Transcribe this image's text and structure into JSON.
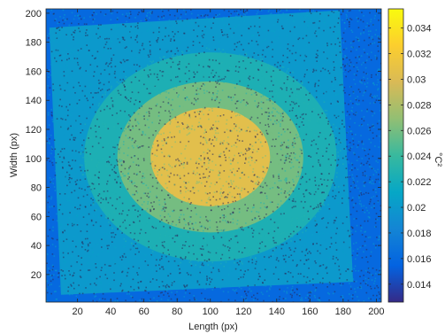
{
  "chart_data": {
    "type": "heatmap",
    "title": "",
    "xlabel": "Length (px)",
    "ylabel": "Width (px)",
    "colorbar_label": "°C²",
    "xlim": [
      1,
      203
    ],
    "ylim": [
      1,
      203
    ],
    "clim": [
      0.0126,
      0.0355
    ],
    "x_ticks": [
      20,
      40,
      60,
      80,
      100,
      120,
      140,
      160,
      180,
      200
    ],
    "y_ticks": [
      20,
      40,
      60,
      80,
      100,
      120,
      140,
      160,
      180,
      200
    ],
    "colorbar_ticks": [
      0.014,
      0.016,
      0.018,
      0.02,
      0.022,
      0.024,
      0.026,
      0.028,
      0.03,
      0.032,
      0.034
    ],
    "colorbar_tick_labels": [
      "0.014",
      "0.016",
      "0.018",
      "0.02",
      "0.022",
      "0.024",
      "0.026",
      "0.028",
      "0.03",
      "0.032",
      "0.034"
    ],
    "colormap": [
      "#352a87",
      "#0363e1",
      "#1485d4",
      "#06a7c6",
      "#38b99e",
      "#92bf73",
      "#d9ba56",
      "#fcce2e",
      "#f9fb0e"
    ],
    "background_level": 0.016,
    "plate": {
      "corners_data": [
        [
          10,
          6
        ],
        [
          186,
          15
        ],
        [
          178,
          202
        ],
        [
          3,
          190
        ]
      ],
      "level": 0.02
    },
    "hot_spot": {
      "center": [
        100,
        101
      ],
      "levels": [
        {
          "rx": 76,
          "ry": 72,
          "value": 0.0225
        },
        {
          "rx": 56,
          "ry": 52,
          "value": 0.026
        },
        {
          "rx": 36,
          "ry": 34,
          "value": 0.0305
        }
      ]
    }
  }
}
